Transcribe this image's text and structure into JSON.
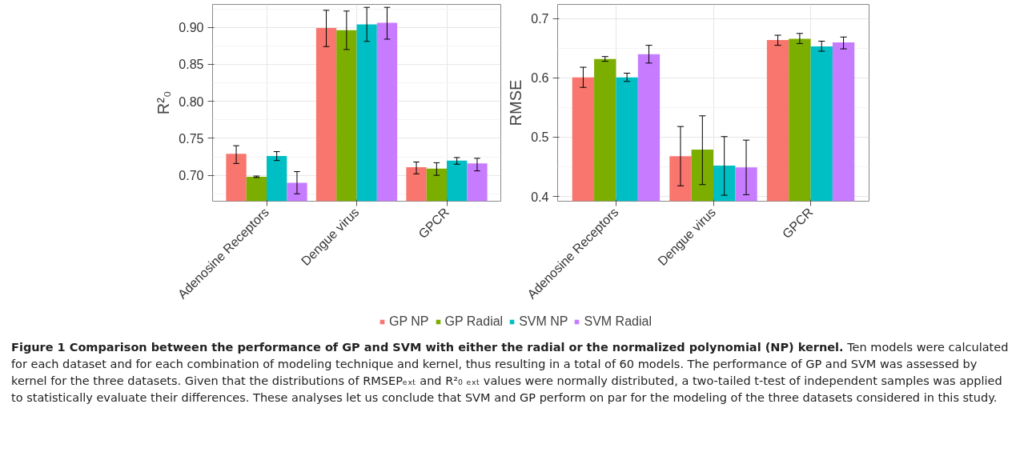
{
  "chart_data": [
    {
      "type": "bar",
      "ylabel": "R²₀",
      "categories": [
        "Adenosine Receptors",
        "Dengue virus",
        "GPCR"
      ],
      "ylim": [
        0.665,
        0.931
      ],
      "yticks": [
        {
          "value": 0.7,
          "label": "0.70"
        },
        0.75,
        {
          "value": 0.8,
          "label": "0.80"
        },
        0.85,
        {
          "value": 0.9,
          "label": "0.90"
        }
      ],
      "grid": true,
      "legend": "bottom",
      "series": [
        {
          "name": "GP NP",
          "color": "#f8766d",
          "values": [
            0.729,
            0.899,
            0.711
          ],
          "errors": [
            [
              0.716,
              0.74
            ],
            [
              0.874,
              0.923
            ],
            [
              0.702,
              0.718
            ]
          ]
        },
        {
          "name": "GP Radial",
          "color": "#7cae00",
          "values": [
            0.698,
            0.896,
            0.709
          ],
          "errors": [
            [
              0.697,
              0.699
            ],
            [
              0.87,
              0.922
            ],
            [
              0.7,
              0.717
            ]
          ]
        },
        {
          "name": "SVM NP",
          "color": "#00bfc4",
          "values": [
            0.726,
            0.904,
            0.72
          ],
          "errors": [
            [
              0.72,
              0.732
            ],
            [
              0.881,
              0.927
            ],
            [
              0.715,
              0.724
            ]
          ]
        },
        {
          "name": "SVM Radial",
          "color": "#c77cff",
          "values": [
            0.69,
            0.906,
            0.716
          ],
          "errors": [
            [
              0.675,
              0.705
            ],
            [
              0.884,
              0.927
            ],
            [
              0.706,
              0.723
            ]
          ]
        }
      ],
      "annotations": [
        "Figure 1 Comparison between the performance of GP and SVM with either the radial or the normalized polynomial (NP) kernel.",
        "Ten models were calculated for each dataset and for each combination of modeling technique and kernel, thus resulting in a total of 60 models. The performance of GP and SVM was assessed by kernel for the three datasets. Given that the distributions of RMSEPₑₓₜ and R²₀ ₑₓₜ values were normally distributed, a two-tailed t-test of independent samples was applied to statistically evaluate their differences. These analyses let us conclude that SVM and GP perform on par for the modeling of the three datasets considered in this study."
      ]
    },
    {
      "type": "bar",
      "ylabel": "RMSE",
      "categories": [
        "Adenosine Receptors",
        "Dengue virus",
        "GPCR"
      ],
      "ylim": [
        0.392,
        0.724
      ],
      "yticks": [
        0.4,
        0.5,
        0.6,
        0.7
      ],
      "grid": true,
      "series": [
        {
          "name": "GP NP",
          "color": "#f8766d",
          "values": [
            0.601,
            0.468,
            0.664
          ],
          "errors": [
            [
              0.584,
              0.618
            ],
            [
              0.418,
              0.518
            ],
            [
              0.655,
              0.672
            ]
          ]
        },
        {
          "name": "GP Radial",
          "color": "#7cae00",
          "values": [
            0.632,
            0.479,
            0.666
          ],
          "errors": [
            [
              0.628,
              0.636
            ],
            [
              0.42,
              0.536
            ],
            [
              0.658,
              0.675
            ]
          ]
        },
        {
          "name": "SVM NP",
          "color": "#00bfc4",
          "values": [
            0.601,
            0.452,
            0.653
          ],
          "errors": [
            [
              0.594,
              0.608
            ],
            [
              0.402,
              0.501
            ],
            [
              0.645,
              0.662
            ]
          ]
        },
        {
          "name": "SVM Radial",
          "color": "#c77cff",
          "values": [
            0.64,
            0.449,
            0.66
          ],
          "errors": [
            [
              0.625,
              0.655
            ],
            [
              0.403,
              0.495
            ],
            [
              0.649,
              0.669
            ]
          ]
        }
      ]
    }
  ]
}
